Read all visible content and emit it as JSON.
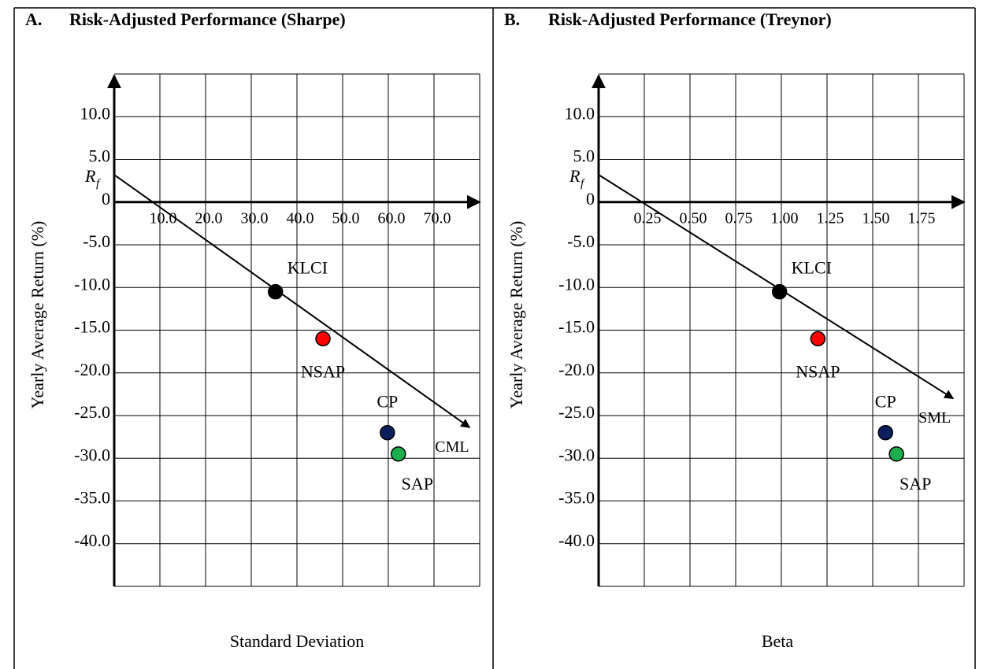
{
  "chart_data": [
    {
      "type": "scatter",
      "panel": "A.",
      "title": "Risk-Adjusted Performance (Sharpe)",
      "x_label": "Standard Deviation",
      "y_label": "Yearly Average Return (%)",
      "xlim": [
        0,
        80
      ],
      "ylim": [
        -45,
        15
      ],
      "xticks": [
        {
          "value": 10,
          "label": "10.0"
        },
        {
          "value": 20,
          "label": "20.0"
        },
        {
          "value": 30,
          "label": "30.0"
        },
        {
          "value": 40,
          "label": "40.0"
        },
        {
          "value": 50,
          "label": "50.0"
        },
        {
          "value": 60,
          "label": "60.0"
        },
        {
          "value": 70,
          "label": "70.0"
        }
      ],
      "yticks": [
        {
          "value": 10,
          "label": "10.0"
        },
        {
          "value": 5,
          "label": "5.0"
        },
        0,
        {
          "value": -5,
          "label": "-5.0"
        },
        {
          "value": -10,
          "label": "-10.0"
        },
        {
          "value": -15,
          "label": "-15.0"
        },
        {
          "value": -20,
          "label": "-20.0"
        },
        {
          "value": -25,
          "label": "-25.0"
        },
        {
          "value": -30,
          "label": "-30.0"
        },
        {
          "value": -35,
          "label": "-35.0"
        },
        {
          "value": -40,
          "label": "-40.0"
        }
      ],
      "grid": true,
      "series": [
        {
          "name": "KLCI",
          "color": "#000000",
          "x": [
            35.3
          ],
          "y": [
            -10.5
          ]
        },
        {
          "name": "NSAP",
          "color": "#ff0000",
          "x": [
            45.7
          ],
          "y": [
            -16
          ]
        },
        {
          "name": "CP",
          "color": "#0a1f5c",
          "x": [
            59.8
          ],
          "y": [
            -27
          ]
        },
        {
          "name": "SAP",
          "color": "#1fae4e",
          "x": [
            62.2
          ],
          "y": [
            -29.5
          ]
        }
      ],
      "line": {
        "name": "CML",
        "x": [
          0,
          77.8
        ],
        "y": [
          3.2,
          -26.4
        ]
      },
      "rf_label": "R",
      "rf_subscript": "f"
    },
    {
      "type": "scatter",
      "panel": "B.",
      "title": "Risk-Adjusted Performance (Treynor)",
      "x_label": "Beta",
      "y_label": "Yearly Average Return (%)",
      "xlim": [
        0,
        2
      ],
      "ylim": [
        -45,
        15
      ],
      "xticks": [
        0.25,
        {
          "value": 0.5,
          "label": "0.50"
        },
        0.75,
        {
          "value": 1,
          "label": "1.00"
        },
        1.25,
        {
          "value": 1.5,
          "label": "1.50"
        },
        1.75
      ],
      "yticks": [
        {
          "value": 10,
          "label": "10.0"
        },
        {
          "value": 5,
          "label": "5.0"
        },
        0,
        {
          "value": -5,
          "label": "-5.0"
        },
        {
          "value": -10,
          "label": "-10.0"
        },
        {
          "value": -15,
          "label": "-15.0"
        },
        {
          "value": -20,
          "label": "-20.0"
        },
        {
          "value": -25,
          "label": "-25.0"
        },
        {
          "value": -30,
          "label": "-30.0"
        },
        {
          "value": -35,
          "label": "-35.0"
        },
        {
          "value": -40,
          "label": "-40.0"
        }
      ],
      "grid": true,
      "series": [
        {
          "name": "KLCI",
          "color": "#000000",
          "x": [
            0.99
          ],
          "y": [
            -10.5
          ]
        },
        {
          "name": "NSAP",
          "color": "#ff0000",
          "x": [
            1.2
          ],
          "y": [
            -16
          ]
        },
        {
          "name": "CP",
          "color": "#0a1f5c",
          "x": [
            1.57
          ],
          "y": [
            -27
          ]
        },
        {
          "name": "SAP",
          "color": "#1fae4e",
          "x": [
            1.63
          ],
          "y": [
            -29.5
          ]
        }
      ],
      "line": {
        "name": "SML",
        "x": [
          0,
          1.94
        ],
        "y": [
          3.2,
          -23
        ]
      },
      "rf_label": "R",
      "rf_subscript": "f"
    }
  ]
}
